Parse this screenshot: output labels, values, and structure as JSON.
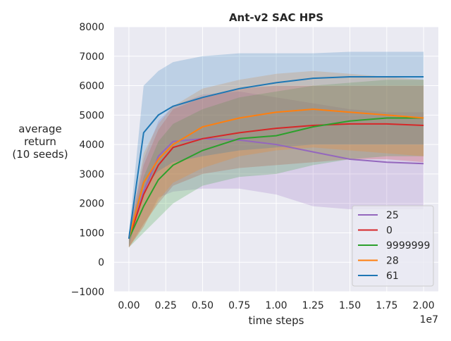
{
  "chart_data": {
    "type": "line",
    "title": "Ant-v2 SAC HPS",
    "xlabel": "time steps",
    "ylabel": [
      "average",
      "return",
      "(10 seeds)"
    ],
    "x_offset_label": "1e7",
    "xlim": [
      -0.1,
      2.1
    ],
    "ylim": [
      -1000,
      8000
    ],
    "x_ticks": [
      0.0,
      0.25,
      0.5,
      0.75,
      1.0,
      1.25,
      1.5,
      1.75,
      2.0
    ],
    "x_tick_labels": [
      "0.00",
      "0.25",
      "0.50",
      "0.75",
      "1.00",
      "1.25",
      "1.50",
      "1.75",
      "2.00"
    ],
    "y_ticks": [
      -1000,
      0,
      1000,
      2000,
      3000,
      4000,
      5000,
      6000,
      7000,
      8000
    ],
    "y_tick_labels": [
      "−1000",
      "0",
      "1000",
      "2000",
      "3000",
      "4000",
      "5000",
      "6000",
      "7000",
      "8000"
    ],
    "grid": true,
    "legend_position": "bottom-right",
    "x": [
      0.0,
      0.1,
      0.2,
      0.3,
      0.5,
      0.75,
      1.0,
      1.25,
      1.5,
      1.75,
      2.0
    ],
    "series": [
      {
        "name": "25",
        "color": "#9467bd",
        "values": [
          800,
          2400,
          3600,
          4100,
          4200,
          4150,
          4000,
          3750,
          3500,
          3400,
          3350
        ],
        "lower": [
          500,
          1200,
          2200,
          2400,
          2500,
          2500,
          2300,
          1900,
          1800,
          1800,
          1800
        ],
        "upper": [
          1000,
          3500,
          4800,
          5300,
          5700,
          5800,
          5600,
          5400,
          5200,
          5100,
          5100
        ]
      },
      {
        "name": "0",
        "color": "#d62728",
        "values": [
          800,
          2300,
          3300,
          3900,
          4200,
          4400,
          4550,
          4650,
          4700,
          4700,
          4650
        ],
        "lower": [
          500,
          1300,
          2000,
          2600,
          3000,
          3200,
          3300,
          3400,
          3500,
          3500,
          3400
        ],
        "upper": [
          1000,
          3300,
          4500,
          5200,
          5600,
          5900,
          6000,
          6000,
          6000,
          6000,
          6000
        ]
      },
      {
        "name": "9999999",
        "color": "#2ca02c",
        "values": [
          800,
          1900,
          2800,
          3300,
          3800,
          4200,
          4300,
          4600,
          4800,
          4900,
          4900
        ],
        "lower": [
          500,
          1000,
          1500,
          2000,
          2600,
          2900,
          3000,
          3300,
          3500,
          3600,
          3600
        ],
        "upper": [
          1000,
          2900,
          4100,
          4700,
          5200,
          5600,
          5800,
          6000,
          6100,
          6200,
          6200
        ]
      },
      {
        "name": "28",
        "color": "#ff7f0e",
        "values": [
          800,
          2700,
          3500,
          4000,
          4600,
          4900,
          5100,
          5200,
          5100,
          5000,
          4900
        ],
        "lower": [
          500,
          1200,
          2100,
          2700,
          3200,
          3600,
          3800,
          3900,
          3800,
          3700,
          3600
        ],
        "upper": [
          1000,
          3700,
          4700,
          5300,
          5900,
          6200,
          6400,
          6500,
          6400,
          6300,
          6200
        ]
      },
      {
        "name": "61",
        "color": "#1f77b4",
        "values": [
          800,
          4400,
          5000,
          5300,
          5600,
          5900,
          6100,
          6250,
          6300,
          6300,
          6300
        ],
        "lower": [
          500,
          2500,
          3100,
          3400,
          3600,
          3800,
          3900,
          4000,
          4000,
          4000,
          4000
        ],
        "upper": [
          1000,
          6000,
          6500,
          6800,
          7000,
          7100,
          7100,
          7100,
          7150,
          7150,
          7150
        ]
      }
    ]
  }
}
